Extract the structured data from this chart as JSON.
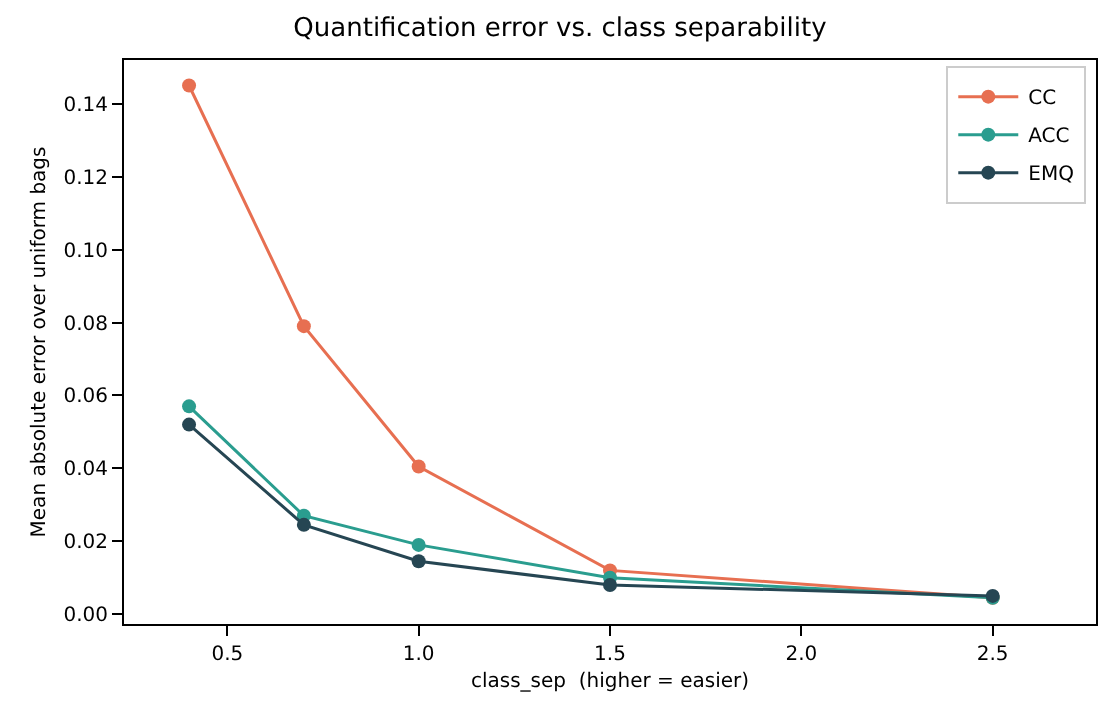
{
  "chart_data": {
    "type": "line",
    "title": "Quantification error vs. class separability",
    "xlabel": "class_sep  (higher = easier)",
    "ylabel": "Mean absolute error over uniform bags",
    "x": [
      0.4,
      0.7,
      1.0,
      1.5,
      2.5
    ],
    "series": [
      {
        "name": "CC",
        "color": "#e76f51",
        "values": [
          0.145,
          0.079,
          0.0405,
          0.012,
          0.0045
        ]
      },
      {
        "name": "ACC",
        "color": "#2a9d8f",
        "values": [
          0.057,
          0.027,
          0.019,
          0.01,
          0.0045
        ]
      },
      {
        "name": "EMQ",
        "color": "#264653",
        "values": [
          0.052,
          0.0245,
          0.0145,
          0.008,
          0.005
        ]
      }
    ],
    "xlim": [
      0.23,
      2.77
    ],
    "xticks": [
      0.5,
      {
        "value": 1,
        "label": "1.0"
      },
      1.5,
      {
        "value": 2,
        "label": "2.0"
      },
      2.5
    ],
    "ylim": [
      -0.0027,
      0.152
    ],
    "yticks": [
      {
        "value": 0,
        "label": "0.00"
      },
      {
        "value": 0.02,
        "label": "0.02"
      },
      {
        "value": 0.04,
        "label": "0.04"
      },
      {
        "value": 0.06,
        "label": "0.06"
      },
      {
        "value": 0.08,
        "label": "0.08"
      },
      {
        "value": 0.1,
        "label": "0.10"
      },
      {
        "value": 0.12,
        "label": "0.12"
      },
      {
        "value": 0.14,
        "label": "0.14"
      }
    ],
    "legend": "top right",
    "marker": "circle",
    "line_style": "solid"
  }
}
